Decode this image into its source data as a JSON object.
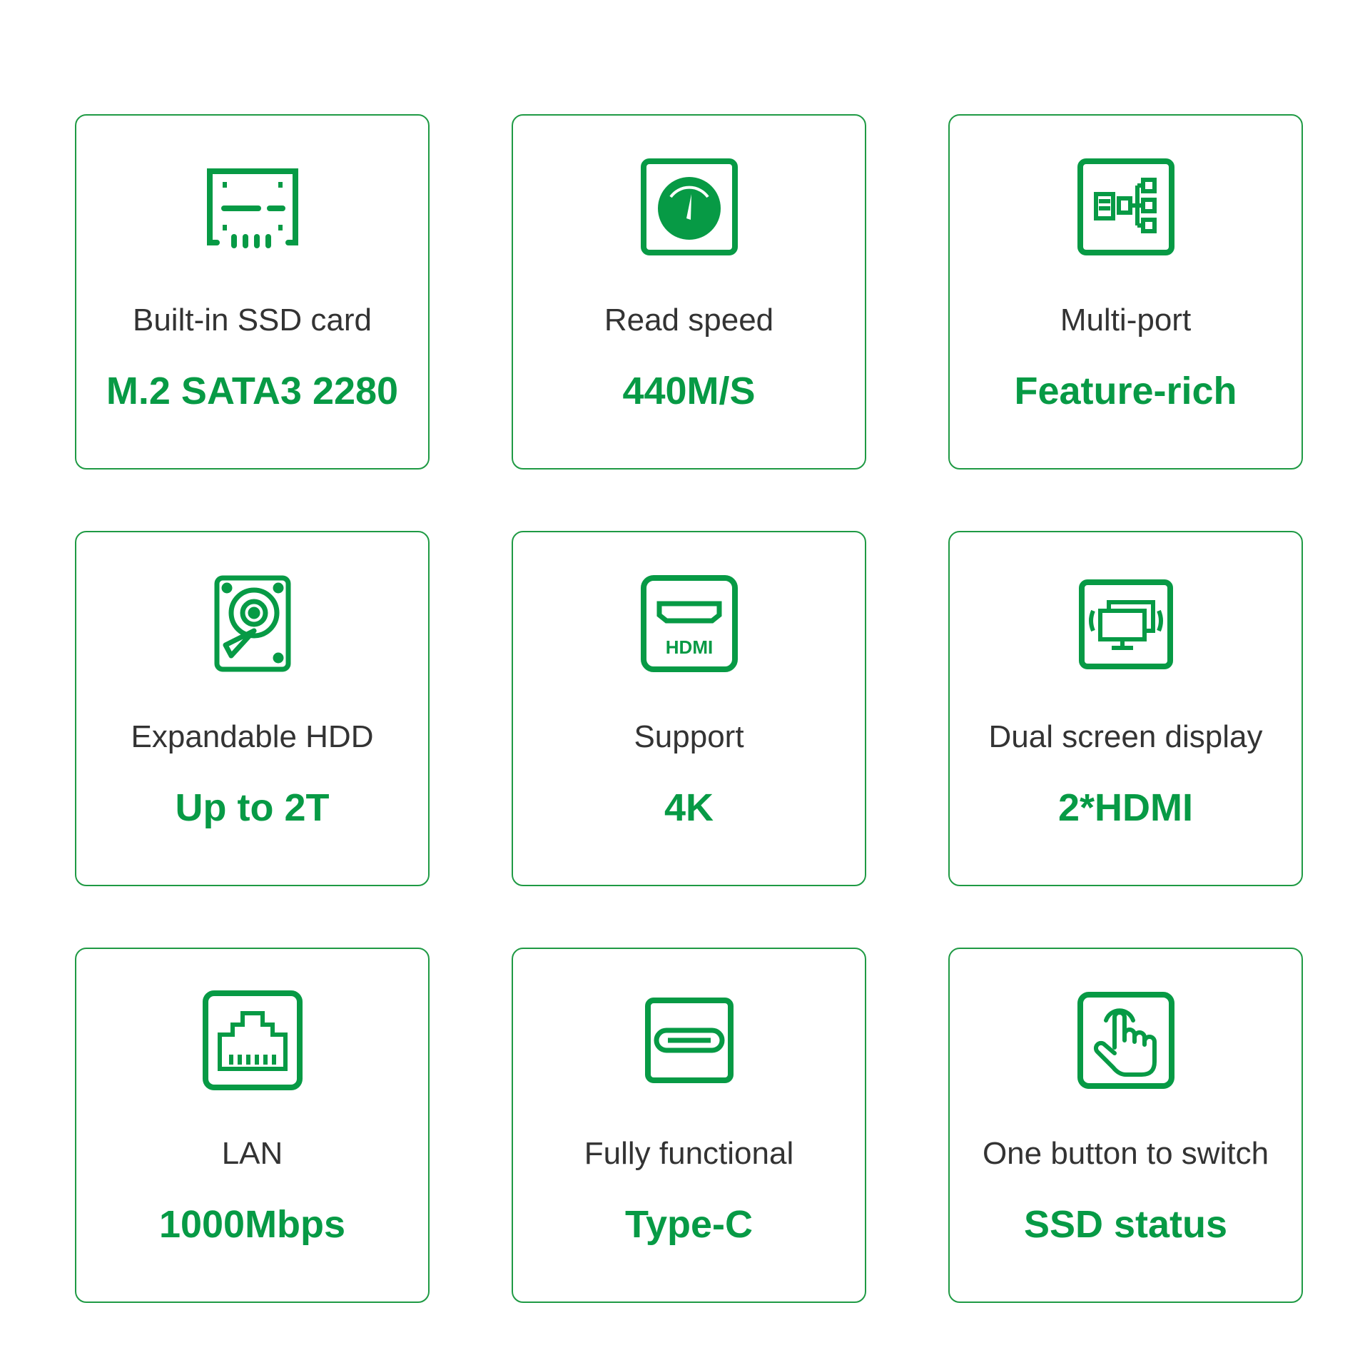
{
  "accent_color": "#079a45",
  "cards": [
    {
      "icon": "ssd-card-icon",
      "label": "Built-in SSD card",
      "value": "M.2 SATA3 2280"
    },
    {
      "icon": "speedometer-icon",
      "label": "Read speed",
      "value": "440M/S"
    },
    {
      "icon": "multi-port-icon",
      "label": "Multi-port",
      "value": "Feature-rich"
    },
    {
      "icon": "hdd-icon",
      "label": "Expandable HDD",
      "value": "Up to 2T"
    },
    {
      "icon": "hdmi-icon",
      "label": "Support",
      "value": "4K",
      "icon_text": "HDMI"
    },
    {
      "icon": "dual-screen-icon",
      "label": "Dual screen display",
      "value": "2*HDMI"
    },
    {
      "icon": "lan-port-icon",
      "label": "LAN",
      "value": "1000Mbps"
    },
    {
      "icon": "type-c-icon",
      "label": "Fully functional",
      "value": "Type-C"
    },
    {
      "icon": "touch-button-icon",
      "label": "One button to switch",
      "value": "SSD status"
    }
  ]
}
